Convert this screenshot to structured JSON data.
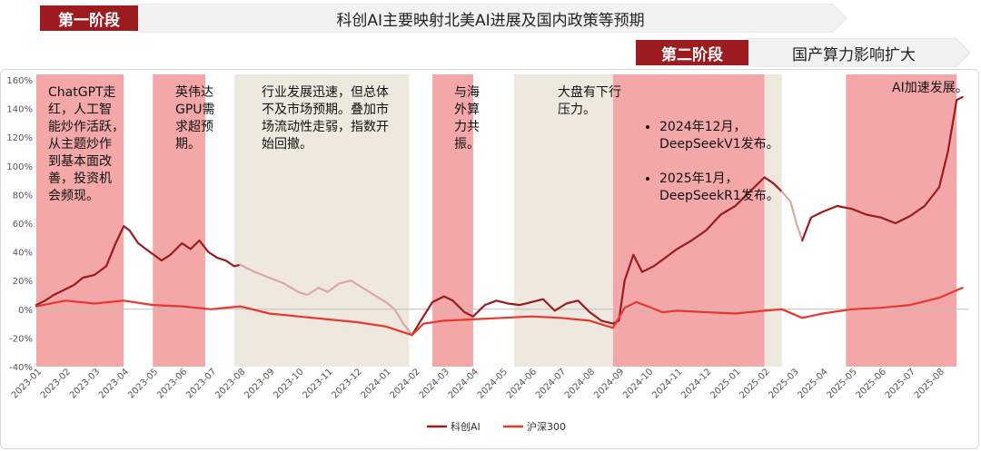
{
  "stage1": {
    "label": "第一阶段",
    "desc": "科创AI主要映射北美AI进展及国内政策等预期"
  },
  "stage2": {
    "label": "第二阶段",
    "desc": "国产算力影响扩大"
  },
  "colors": {
    "dark_red": "#9b1b1f",
    "red": "#e8372c",
    "pink_band": "#f4a7a8",
    "beige_band": "#efe8df",
    "pale_line": "#d9a8a6"
  },
  "annotations": {
    "a1": "ChatGPT走\n红，人工智\n能炒作活跃，\n从主题炒作\n到基本面改\n善，投资机\n会频现。",
    "a2": "英伟达\nGPU需\n求超预\n期。",
    "a3": "行业发展迅速，但总体\n不及市场预期。叠加市\n场流动性走弱，指数开\n始回撤。",
    "a4": "与海\n外算\n力共\n振。",
    "a5": "大盘有下行\n压力。",
    "a6_items": [
      "2024年12月，\nDeepSeekV1发布。",
      "2025年1月，\nDeepSeekR1发布。"
    ],
    "a7": "AI加速发展。"
  },
  "chart_data": {
    "type": "line",
    "title": "",
    "xlabel": "",
    "ylabel": "",
    "ylim": [
      -40,
      160
    ],
    "yticks": [
      "-40%",
      "-20%",
      "0%",
      "20%",
      "40%",
      "60%",
      "80%",
      "100%",
      "120%",
      "140%",
      "160%"
    ],
    "ytick_values": [
      -40,
      -20,
      0,
      20,
      40,
      60,
      80,
      100,
      120,
      140,
      160
    ],
    "xlim": [
      0,
      32
    ],
    "x_tick_labels": [
      "2023-01",
      "2023-02",
      "2023-03",
      "2023-04",
      "2023-05",
      "2023-06",
      "2023-07",
      "2023-08",
      "2023-09",
      "2023-10",
      "2023-11",
      "2023-12",
      "2024-01",
      "2024-02",
      "2024-03",
      "2024-04",
      "2024-05",
      "2024-06",
      "2024-07",
      "2024-08",
      "2024-09",
      "2024-10",
      "2024-11",
      "2024-12",
      "2025-01",
      "2025-02",
      "2025-03",
      "2025-04",
      "2025-05",
      "2025-06",
      "2025-07",
      "2025-08"
    ],
    "x_tick_positions": [
      0,
      1,
      2,
      3,
      4,
      5,
      6,
      7,
      8,
      9,
      10,
      11,
      12,
      13,
      14,
      15,
      16,
      17,
      18,
      19,
      20,
      21,
      22,
      23,
      24,
      25,
      26,
      27,
      28,
      29,
      30,
      31
    ],
    "bands": [
      {
        "from": 0.0,
        "to": 3.0,
        "type": "pink"
      },
      {
        "from": 4.0,
        "to": 5.8,
        "type": "pink"
      },
      {
        "from": 6.8,
        "to": 12.8,
        "type": "beige"
      },
      {
        "from": 13.6,
        "to": 15.0,
        "type": "pink"
      },
      {
        "from": 16.4,
        "to": 19.8,
        "type": "beige"
      },
      {
        "from": 19.8,
        "to": 25.0,
        "type": "pink"
      },
      {
        "from": 25.0,
        "to": 25.6,
        "type": "beige"
      },
      {
        "from": 27.8,
        "to": 31.6,
        "type": "pink"
      }
    ],
    "legend": [
      "科创AI",
      "沪深300"
    ],
    "series": [
      {
        "name": "科创AI",
        "color": "#9b1b1f",
        "points": [
          [
            0,
            3
          ],
          [
            0.3,
            6
          ],
          [
            0.6,
            10
          ],
          [
            1.0,
            14
          ],
          [
            1.3,
            17
          ],
          [
            1.6,
            22
          ],
          [
            2.0,
            24
          ],
          [
            2.4,
            30
          ],
          [
            2.7,
            45
          ],
          [
            3.0,
            58
          ],
          [
            3.2,
            55
          ],
          [
            3.5,
            46
          ],
          [
            3.9,
            40
          ],
          [
            4.3,
            34
          ],
          [
            4.6,
            38
          ],
          [
            5.0,
            46
          ],
          [
            5.3,
            42
          ],
          [
            5.6,
            48
          ],
          [
            5.9,
            40
          ],
          [
            6.2,
            36
          ],
          [
            6.5,
            34
          ],
          [
            6.8,
            30
          ],
          [
            7.0,
            31
          ]
        ]
      },
      {
        "name": "科创AI-faded",
        "color": "#d9a8a6",
        "points": [
          [
            7.0,
            31
          ],
          [
            7.5,
            26
          ],
          [
            8.0,
            22
          ],
          [
            8.5,
            18
          ],
          [
            9.0,
            12
          ],
          [
            9.3,
            10
          ],
          [
            9.7,
            15
          ],
          [
            10.0,
            12
          ],
          [
            10.4,
            18
          ],
          [
            10.8,
            20
          ],
          [
            11.2,
            15
          ],
          [
            11.6,
            10
          ],
          [
            12.0,
            5
          ],
          [
            12.3,
            0
          ],
          [
            12.6,
            -10
          ],
          [
            12.9,
            -18
          ]
        ]
      },
      {
        "name": "科创AI",
        "color": "#9b1b1f",
        "points": [
          [
            12.9,
            -18
          ],
          [
            13.2,
            -8
          ],
          [
            13.6,
            5
          ],
          [
            14.0,
            9
          ],
          [
            14.3,
            6
          ],
          [
            14.7,
            -2
          ],
          [
            15.0,
            -5
          ],
          [
            15.4,
            3
          ],
          [
            15.8,
            6
          ],
          [
            16.2,
            4
          ],
          [
            16.6,
            3
          ],
          [
            17.0,
            5
          ],
          [
            17.4,
            7
          ],
          [
            17.8,
            -1
          ],
          [
            18.2,
            4
          ],
          [
            18.6,
            6
          ],
          [
            19.0,
            -2
          ],
          [
            19.4,
            -8
          ],
          [
            19.8,
            -10
          ],
          [
            20.0,
            -8
          ],
          [
            20.2,
            20
          ],
          [
            20.5,
            38
          ],
          [
            20.8,
            26
          ],
          [
            21.2,
            30
          ],
          [
            21.6,
            36
          ],
          [
            22.0,
            42
          ],
          [
            22.5,
            48
          ],
          [
            23.0,
            55
          ],
          [
            23.5,
            66
          ],
          [
            24.0,
            72
          ],
          [
            24.5,
            82
          ],
          [
            25.0,
            92
          ],
          [
            25.3,
            88
          ],
          [
            25.6,
            82
          ]
        ]
      },
      {
        "name": "科创AI-faded",
        "color": "#d9a8a6",
        "points": [
          [
            25.6,
            82
          ],
          [
            25.9,
            75
          ],
          [
            26.1,
            60
          ],
          [
            26.3,
            48
          ]
        ]
      },
      {
        "name": "科创AI",
        "color": "#9b1b1f",
        "points": [
          [
            26.3,
            48
          ],
          [
            26.6,
            64
          ],
          [
            27.0,
            68
          ],
          [
            27.5,
            72
          ],
          [
            28.0,
            70
          ],
          [
            28.5,
            66
          ],
          [
            29.0,
            64
          ],
          [
            29.5,
            60
          ],
          [
            30.0,
            65
          ],
          [
            30.5,
            72
          ],
          [
            31.0,
            85
          ],
          [
            31.3,
            110
          ],
          [
            31.6,
            146
          ],
          [
            31.8,
            148
          ]
        ]
      },
      {
        "name": "沪深300",
        "color": "#e8372c",
        "points": [
          [
            0,
            2
          ],
          [
            1.0,
            6
          ],
          [
            2.0,
            4
          ],
          [
            3.0,
            6
          ],
          [
            4.0,
            3
          ],
          [
            5.0,
            2
          ],
          [
            6.0,
            0
          ],
          [
            7.0,
            2
          ],
          [
            8.0,
            -3
          ],
          [
            9.0,
            -5
          ],
          [
            10.0,
            -7
          ],
          [
            11.0,
            -9
          ],
          [
            12.0,
            -12
          ],
          [
            12.9,
            -18
          ],
          [
            13.3,
            -10
          ],
          [
            14.0,
            -8
          ],
          [
            15.0,
            -7
          ],
          [
            16.0,
            -6
          ],
          [
            17.0,
            -5
          ],
          [
            18.0,
            -6
          ],
          [
            19.0,
            -8
          ],
          [
            19.8,
            -13
          ],
          [
            20.2,
            1
          ],
          [
            20.6,
            5
          ],
          [
            21.0,
            2
          ],
          [
            21.5,
            -2
          ],
          [
            22.0,
            -1
          ],
          [
            23.0,
            -2
          ],
          [
            24.0,
            -3
          ],
          [
            25.0,
            -1
          ],
          [
            25.6,
            0
          ],
          [
            26.3,
            -6
          ],
          [
            27.0,
            -3
          ],
          [
            28.0,
            0
          ],
          [
            29.0,
            1
          ],
          [
            30.0,
            3
          ],
          [
            31.0,
            8
          ],
          [
            31.8,
            15
          ]
        ]
      }
    ]
  }
}
